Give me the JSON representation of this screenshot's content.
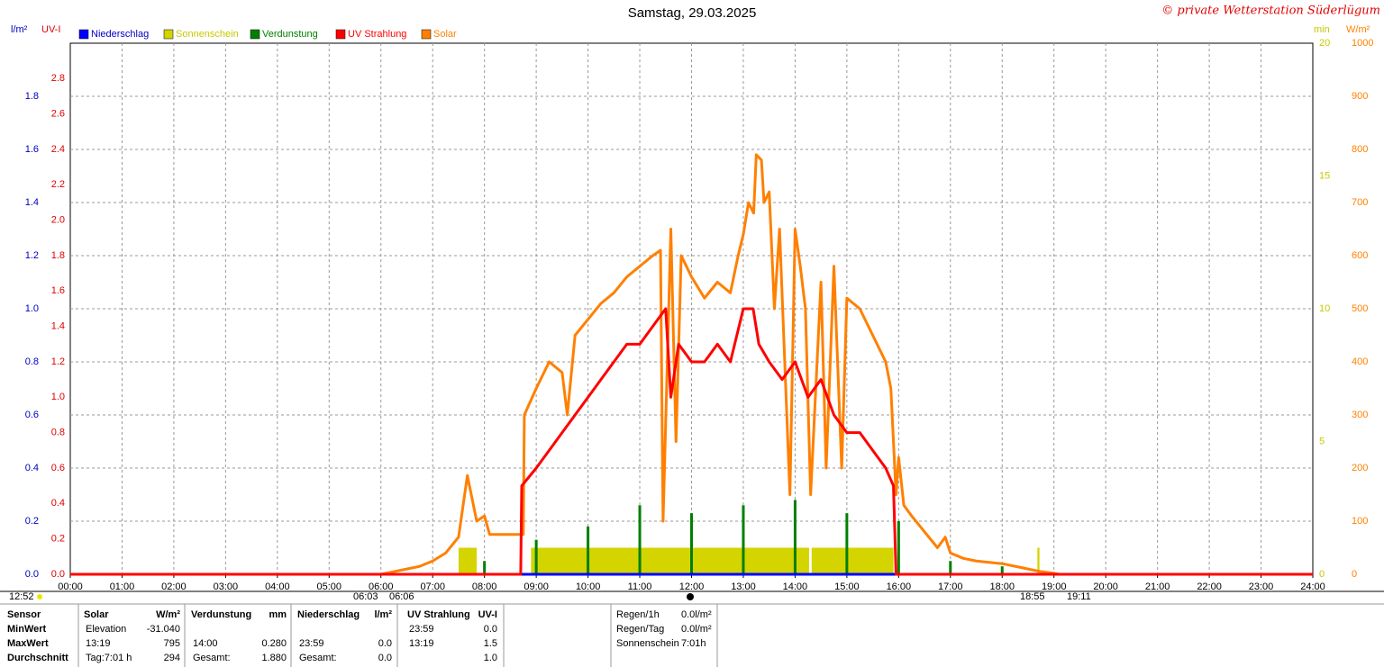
{
  "chart_data": {
    "type": "line",
    "title": "Samstag, 29.03.2025",
    "credit": "© private Wetterstation Süderlügum",
    "axis_labels": {
      "y": "l/m²",
      "y2": "UV-I",
      "y3": "min",
      "y4": "W/m²"
    },
    "xlim": [
      0,
      24
    ],
    "xticks": [
      {
        "value": 0,
        "label": "00:00"
      },
      {
        "value": 1,
        "label": "01:00"
      },
      {
        "value": 2,
        "label": "02:00"
      },
      {
        "value": 3,
        "label": "03:00"
      },
      {
        "value": 4,
        "label": "04:00"
      },
      {
        "value": 5,
        "label": "05:00"
      },
      {
        "value": 6,
        "label": "06:00"
      },
      {
        "value": 7,
        "label": "07:00"
      },
      {
        "value": 8,
        "label": "08:00"
      },
      {
        "value": 9,
        "label": "09:00"
      },
      {
        "value": 10,
        "label": "10:00"
      },
      {
        "value": 11,
        "label": "11:00"
      },
      {
        "value": 12,
        "label": "12:00"
      },
      {
        "value": 13,
        "label": "13:00"
      },
      {
        "value": 14,
        "label": "14:00"
      },
      {
        "value": 15,
        "label": "15:00"
      },
      {
        "value": 16,
        "label": "16:00"
      },
      {
        "value": 17,
        "label": "17:00"
      },
      {
        "value": 18,
        "label": "18:00"
      },
      {
        "value": 19,
        "label": "19:00"
      },
      {
        "value": 20,
        "label": "20:00"
      },
      {
        "value": 21,
        "label": "21:00"
      },
      {
        "value": 22,
        "label": "22:00"
      },
      {
        "value": 23,
        "label": "23:00"
      },
      {
        "value": 24,
        "label": "24:00"
      }
    ],
    "ylim": [
      0,
      2
    ],
    "yticks": [
      {
        "value": 0,
        "label": "0.0"
      },
      0.2,
      0.4,
      0.6,
      0.8,
      {
        "value": 1,
        "label": "1.0"
      },
      1.2,
      1.4,
      1.6,
      1.8
    ],
    "y2lim": [
      0,
      3
    ],
    "y2ticks": [
      {
        "value": 0,
        "label": "0.0"
      },
      0.2,
      0.4,
      0.6,
      0.8,
      {
        "value": 1,
        "label": "1.0"
      },
      1.2,
      1.4,
      1.6,
      1.8,
      {
        "value": 2,
        "label": "2.0"
      },
      2.2,
      2.4,
      2.6,
      2.8
    ],
    "y3lim": [
      0,
      20
    ],
    "y3ticks": [
      0,
      5,
      10,
      15,
      20
    ],
    "y4lim": [
      0,
      1000
    ],
    "y4ticks": [
      0,
      100,
      200,
      300,
      400,
      500,
      600,
      700,
      800,
      900,
      1000
    ],
    "grid": true,
    "series": [
      {
        "name": "Niederschlag",
        "color": "#0000ff",
        "axis": "y",
        "kind": "line",
        "x": [
          0,
          24
        ],
        "values": [
          0,
          0
        ]
      },
      {
        "name": "Sonnenschein",
        "color": "#d4d400",
        "axis": "y3",
        "kind": "segments",
        "segments": [
          [
            7.5,
            7.85
          ],
          [
            8.9,
            14.27
          ],
          [
            14.32,
            15.9
          ],
          [
            18.68,
            18.72
          ]
        ],
        "values": [
          1,
          1,
          1,
          1
        ]
      },
      {
        "name": "Verdunstung",
        "color": "#008000",
        "axis": "y",
        "kind": "spikes",
        "x": [
          8,
          9,
          10,
          11,
          12,
          13,
          14,
          15,
          16,
          17,
          18
        ],
        "values": [
          0.05,
          0.13,
          0.18,
          0.26,
          0.23,
          0.26,
          0.28,
          0.23,
          0.2,
          0.05,
          0.03
        ]
      },
      {
        "name": "UV Strahlung",
        "color": "#ff0000",
        "axis": "y2",
        "kind": "line",
        "x": [
          0,
          8.7,
          8.72,
          9,
          9.25,
          9.5,
          9.75,
          10,
          10.25,
          10.5,
          10.75,
          11,
          11.25,
          11.5,
          11.6,
          11.75,
          12,
          12.25,
          12.5,
          12.75,
          13,
          13.19,
          13.3,
          13.5,
          13.75,
          14,
          14.25,
          14.5,
          14.75,
          15,
          15.25,
          15.5,
          15.75,
          15.9,
          15.95,
          24
        ],
        "values": [
          0,
          0,
          0.5,
          0.6,
          0.7,
          0.8,
          0.9,
          1.0,
          1.1,
          1.2,
          1.3,
          1.3,
          1.4,
          1.5,
          1.0,
          1.3,
          1.2,
          1.2,
          1.3,
          1.2,
          1.5,
          1.5,
          1.3,
          1.2,
          1.1,
          1.2,
          1.0,
          1.1,
          0.9,
          0.8,
          0.8,
          0.7,
          0.6,
          0.5,
          0,
          0
        ]
      },
      {
        "name": "Solar",
        "color": "#ff8000",
        "axis": "y4",
        "kind": "line",
        "x": [
          6,
          6.25,
          6.5,
          6.75,
          7,
          7.25,
          7.5,
          7.67,
          7.85,
          8,
          8.1,
          8.75,
          8.77,
          9,
          9.25,
          9.5,
          9.6,
          9.75,
          10,
          10.25,
          10.5,
          10.75,
          11,
          11.25,
          11.4,
          11.45,
          11.6,
          11.7,
          11.8,
          12,
          12.25,
          12.5,
          12.75,
          12.9,
          13,
          13.1,
          13.2,
          13.25,
          13.35,
          13.4,
          13.5,
          13.6,
          13.7,
          13.8,
          13.9,
          14,
          14.1,
          14.2,
          14.3,
          14.5,
          14.6,
          14.75,
          14.9,
          15,
          15.25,
          15.5,
          15.75,
          15.85,
          15.95,
          16,
          16.1,
          16.25,
          16.5,
          16.75,
          16.9,
          17,
          17.25,
          17.5,
          18,
          18.25,
          18.5,
          18.75,
          19,
          19.1
        ],
        "values": [
          0,
          5,
          10,
          15,
          25,
          40,
          70,
          186,
          100,
          110,
          75,
          75,
          300,
          350,
          400,
          380,
          300,
          450,
          480,
          510,
          530,
          560,
          580,
          600,
          610,
          100,
          650,
          250,
          600,
          560,
          520,
          550,
          530,
          600,
          640,
          700,
          680,
          790,
          780,
          700,
          720,
          500,
          650,
          400,
          150,
          650,
          580,
          500,
          150,
          550,
          200,
          580,
          200,
          520,
          500,
          450,
          400,
          350,
          150,
          220,
          130,
          110,
          80,
          50,
          70,
          40,
          30,
          25,
          20,
          15,
          10,
          5,
          2,
          0
        ]
      }
    ],
    "annotations": [
      "12:52",
      "06:03",
      "06:06",
      "18:55",
      "19:11"
    ],
    "table": {
      "header": [
        "Sensor",
        "Solar",
        "W/m²",
        "Verdunstung",
        "mm",
        "Niederschlag",
        "l/m²",
        "UV Strahlung",
        "UV-I"
      ],
      "rows": [
        [
          "MinWert",
          "Elevation",
          "-31.040",
          null,
          null,
          null,
          null,
          "23:59",
          "0.0"
        ],
        [
          "MaxWert",
          "13:19",
          "795",
          "14:00",
          "0.280",
          "23:59",
          "0.0",
          "13:19",
          "1.5"
        ],
        [
          "Durchschnitt",
          "Tag:7:01 h",
          "294",
          "Gesamt:",
          "1.880",
          "Gesamt:",
          "0.0",
          null,
          "1.0"
        ]
      ]
    },
    "summary": [
      [
        "Regen/1h",
        "0.0l/m²"
      ],
      [
        "Regen/Tag",
        "0.0l/m²"
      ],
      [
        "Sonnenschein",
        "7:01h"
      ]
    ]
  }
}
